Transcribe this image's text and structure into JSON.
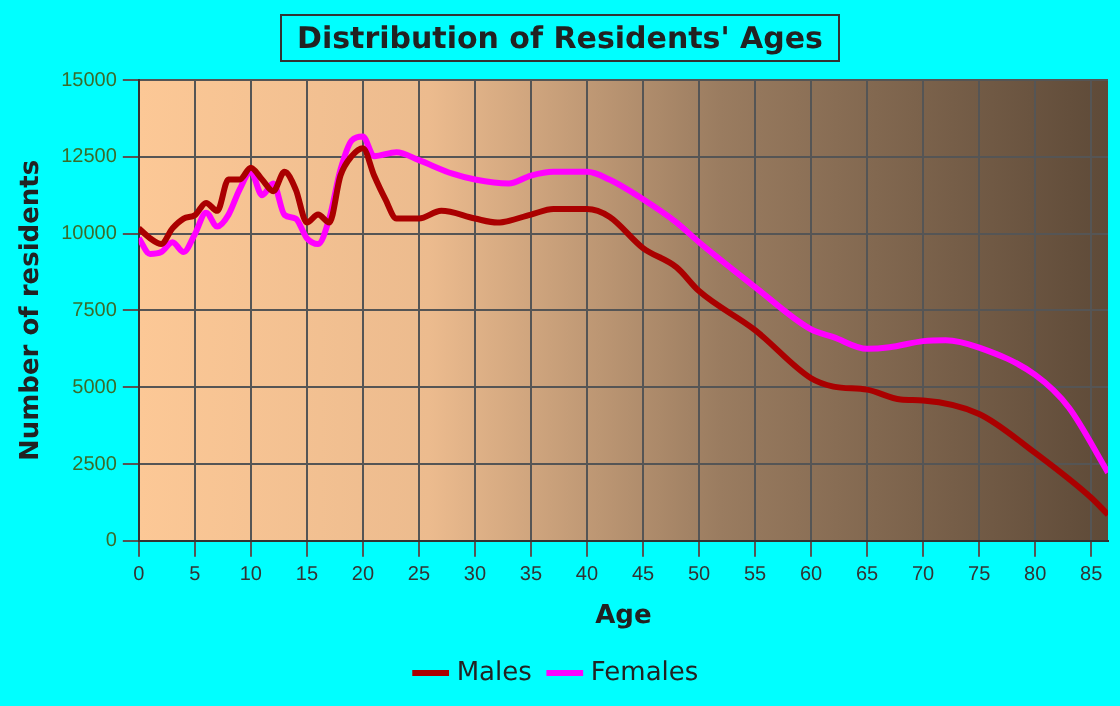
{
  "chart_data": {
    "type": "line",
    "title": "Distribution of Residents' Ages",
    "xlabel": "Age",
    "ylabel": "Number of residents",
    "series": [
      {
        "name": "Males",
        "color": "#aa0000",
        "x": [
          0,
          1,
          2,
          3,
          4,
          5,
          6,
          7,
          8,
          9,
          10,
          11,
          12,
          13,
          14,
          15,
          16,
          17,
          18,
          19,
          20,
          21,
          22,
          23,
          25,
          27,
          30,
          32,
          35,
          37,
          40,
          42,
          45,
          48,
          50,
          55,
          60,
          62,
          65,
          68,
          70,
          75,
          80,
          85,
          86.5
        ],
        "values": [
          10170,
          9850,
          9660,
          10170,
          10490,
          10600,
          11000,
          10740,
          11760,
          11760,
          12140,
          11760,
          11380,
          12010,
          11440,
          10360,
          10620,
          10360,
          11890,
          12520,
          12780,
          11890,
          11120,
          10490,
          10490,
          10740,
          10490,
          10360,
          10620,
          10800,
          10800,
          10550,
          9530,
          8900,
          8130,
          6860,
          5290,
          5020,
          4920,
          4600,
          4570,
          4130,
          2860,
          1400,
          850
        ]
      },
      {
        "name": "Females",
        "color": "#ff00ff",
        "x": [
          0,
          1,
          2,
          3,
          4,
          5,
          6,
          7,
          8,
          9,
          10,
          11,
          12,
          13,
          14,
          15,
          16,
          17,
          18,
          19,
          20,
          21,
          23,
          25,
          28,
          30,
          33,
          35,
          37,
          40,
          42,
          45,
          48,
          50,
          55,
          60,
          62,
          65,
          67,
          70,
          72,
          75,
          80,
          83,
          86.5
        ],
        "values": [
          9850,
          9340,
          9400,
          9720,
          9400,
          9980,
          10680,
          10230,
          10610,
          11440,
          12010,
          11250,
          11630,
          10610,
          10490,
          9850,
          9660,
          10490,
          12080,
          13030,
          13160,
          12520,
          12650,
          12390,
          11950,
          11760,
          11630,
          11890,
          12010,
          12010,
          11760,
          11120,
          10360,
          9720,
          8260,
          6880,
          6630,
          6250,
          6300,
          6500,
          6530,
          6290,
          5400,
          4340,
          2220
        ]
      }
    ],
    "xlim": [
      0,
      86.5
    ],
    "xticks": [
      0,
      5,
      10,
      15,
      20,
      25,
      30,
      35,
      40,
      45,
      50,
      55,
      60,
      65,
      70,
      75,
      80,
      85
    ],
    "ylim": [
      0,
      15000
    ],
    "yticks": [
      0,
      2500,
      5000,
      7500,
      10000,
      12500,
      15000
    ],
    "grid": true,
    "legend": "bottom",
    "marker": "none",
    "line_style": "solid"
  }
}
